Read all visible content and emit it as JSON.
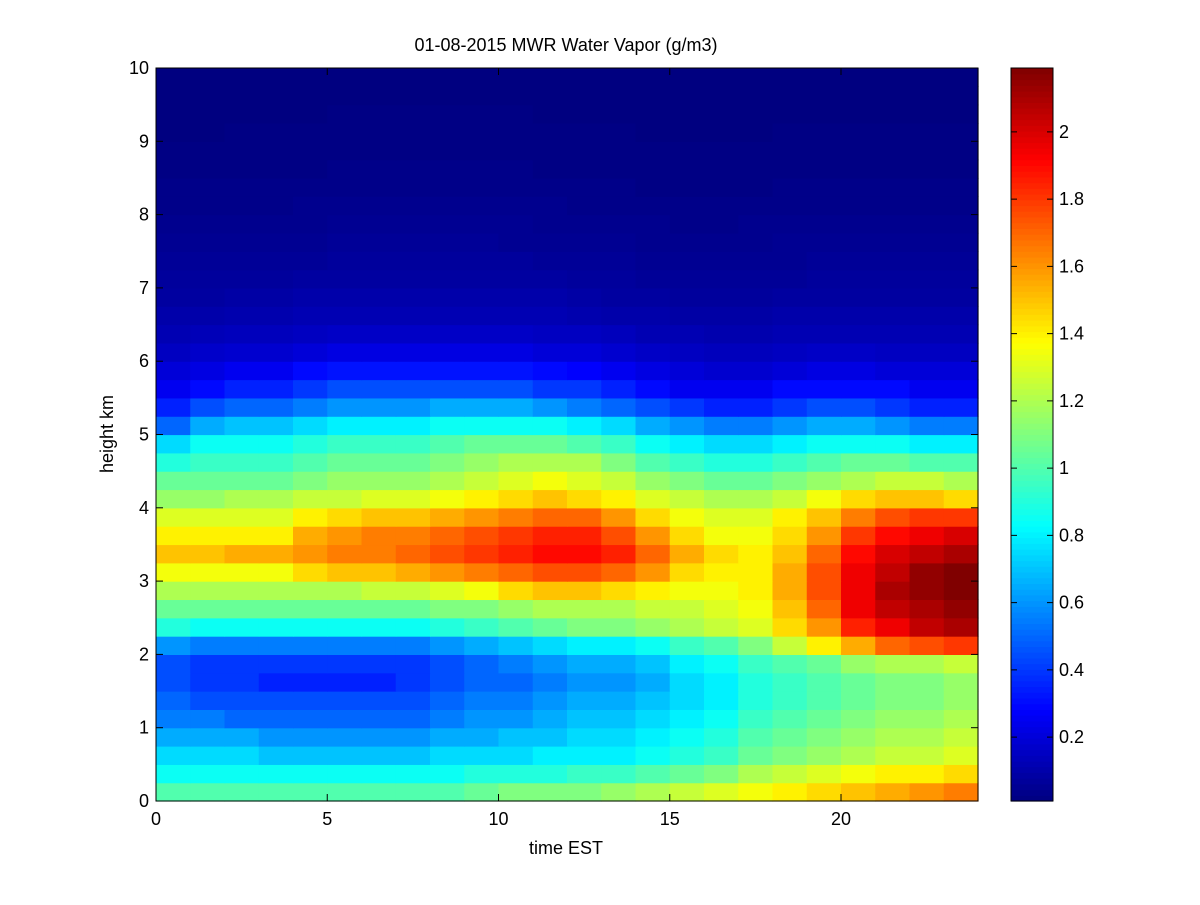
{
  "chart_data": {
    "type": "heatmap",
    "title": "01-08-2015 MWR Water Vapor (g/m3)",
    "xlabel": "time EST",
    "ylabel": "height km",
    "xlim": [
      0,
      24
    ],
    "ylim": [
      0,
      10
    ],
    "x_ticks": [
      0,
      5,
      10,
      15,
      20
    ],
    "y_ticks": [
      0,
      1,
      2,
      3,
      4,
      5,
      6,
      7,
      8,
      9,
      10
    ],
    "colormap": "jet",
    "colorbar": {
      "range": [
        0.01,
        2.19
      ],
      "ticks": [
        0.2,
        0.4,
        0.6,
        0.8,
        1,
        1.2,
        1.4,
        1.6,
        1.8,
        2
      ]
    },
    "grid": false,
    "times": [
      0.5,
      1.5,
      2.5,
      3.5,
      4.5,
      5.5,
      6.5,
      7.5,
      8.5,
      9.5,
      10.5,
      11.5,
      12.5,
      13.5,
      14.5,
      15.5,
      16.5,
      17.5,
      18.5,
      19.5,
      20.5,
      21.5,
      22.5,
      23.5
    ],
    "heights": [
      0.0,
      0.25,
      0.5,
      0.75,
      1.0,
      1.25,
      1.5,
      1.75,
      2.0,
      2.25,
      2.5,
      2.75,
      3.0,
      3.25,
      3.5,
      3.75,
      4.0,
      4.25,
      4.5,
      4.75,
      5.0,
      5.25,
      5.5,
      5.75,
      6.0,
      6.25,
      6.5,
      6.75,
      7.0,
      7.25,
      7.5,
      7.75,
      8.0,
      8.25,
      8.5,
      8.75,
      9.0,
      9.25,
      9.5,
      9.75
    ],
    "values": [
      [
        1.0,
        1.0,
        1.0,
        1.0,
        1.0,
        1.0,
        1.0,
        1.0,
        1.0,
        1.05,
        1.1,
        1.1,
        1.1,
        1.15,
        1.2,
        1.25,
        1.3,
        1.35,
        1.4,
        1.45,
        1.5,
        1.55,
        1.6,
        1.65
      ],
      [
        0.85,
        0.85,
        0.85,
        0.85,
        0.85,
        0.85,
        0.85,
        0.85,
        0.85,
        0.9,
        0.9,
        0.9,
        0.95,
        0.95,
        1.0,
        1.05,
        1.1,
        1.2,
        1.25,
        1.3,
        1.35,
        1.4,
        1.4,
        1.45
      ],
      [
        0.75,
        0.75,
        0.75,
        0.7,
        0.7,
        0.7,
        0.7,
        0.7,
        0.75,
        0.75,
        0.75,
        0.8,
        0.8,
        0.8,
        0.85,
        0.9,
        0.95,
        1.05,
        1.1,
        1.15,
        1.2,
        1.25,
        1.25,
        1.3
      ],
      [
        0.65,
        0.65,
        0.65,
        0.6,
        0.6,
        0.6,
        0.6,
        0.6,
        0.65,
        0.65,
        0.7,
        0.7,
        0.75,
        0.75,
        0.8,
        0.85,
        0.9,
        1.0,
        1.05,
        1.1,
        1.15,
        1.2,
        1.2,
        1.25
      ],
      [
        0.55,
        0.55,
        0.5,
        0.5,
        0.5,
        0.5,
        0.5,
        0.5,
        0.55,
        0.6,
        0.6,
        0.65,
        0.7,
        0.7,
        0.75,
        0.8,
        0.85,
        0.95,
        1.0,
        1.05,
        1.1,
        1.15,
        1.15,
        1.2
      ],
      [
        0.5,
        0.45,
        0.45,
        0.45,
        0.45,
        0.45,
        0.45,
        0.45,
        0.5,
        0.55,
        0.55,
        0.6,
        0.65,
        0.65,
        0.7,
        0.75,
        0.8,
        0.9,
        0.95,
        1.0,
        1.05,
        1.1,
        1.1,
        1.15
      ],
      [
        0.45,
        0.4,
        0.4,
        0.35,
        0.35,
        0.35,
        0.35,
        0.4,
        0.45,
        0.5,
        0.5,
        0.55,
        0.6,
        0.6,
        0.65,
        0.75,
        0.8,
        0.9,
        0.95,
        1.0,
        1.05,
        1.1,
        1.1,
        1.15
      ],
      [
        0.45,
        0.4,
        0.4,
        0.4,
        0.4,
        0.4,
        0.4,
        0.4,
        0.45,
        0.5,
        0.55,
        0.6,
        0.65,
        0.65,
        0.7,
        0.8,
        0.85,
        0.95,
        1.0,
        1.05,
        1.15,
        1.2,
        1.2,
        1.25
      ],
      [
        0.6,
        0.55,
        0.55,
        0.55,
        0.55,
        0.55,
        0.55,
        0.55,
        0.6,
        0.65,
        0.7,
        0.75,
        0.8,
        0.8,
        0.85,
        0.95,
        1.0,
        1.1,
        1.25,
        1.4,
        1.55,
        1.7,
        1.75,
        1.8
      ],
      [
        0.9,
        0.85,
        0.85,
        0.85,
        0.85,
        0.85,
        0.85,
        0.85,
        0.9,
        0.95,
        1.0,
        1.05,
        1.1,
        1.1,
        1.15,
        1.2,
        1.25,
        1.3,
        1.45,
        1.6,
        1.85,
        1.95,
        2.05,
        2.1
      ],
      [
        1.05,
        1.05,
        1.05,
        1.05,
        1.05,
        1.05,
        1.05,
        1.05,
        1.1,
        1.1,
        1.15,
        1.2,
        1.2,
        1.2,
        1.25,
        1.25,
        1.3,
        1.35,
        1.5,
        1.7,
        1.95,
        2.05,
        2.1,
        2.15
      ],
      [
        1.2,
        1.2,
        1.2,
        1.2,
        1.2,
        1.2,
        1.25,
        1.25,
        1.3,
        1.35,
        1.45,
        1.5,
        1.5,
        1.45,
        1.4,
        1.35,
        1.35,
        1.4,
        1.55,
        1.75,
        1.95,
        2.1,
        2.15,
        2.19
      ],
      [
        1.35,
        1.35,
        1.35,
        1.35,
        1.45,
        1.5,
        1.5,
        1.55,
        1.6,
        1.65,
        1.7,
        1.75,
        1.75,
        1.7,
        1.6,
        1.45,
        1.4,
        1.4,
        1.55,
        1.75,
        1.95,
        2.05,
        2.15,
        2.19
      ],
      [
        1.5,
        1.5,
        1.55,
        1.55,
        1.6,
        1.65,
        1.65,
        1.7,
        1.75,
        1.8,
        1.85,
        1.9,
        1.9,
        1.85,
        1.7,
        1.55,
        1.45,
        1.4,
        1.5,
        1.7,
        1.9,
        2.0,
        2.05,
        2.1
      ],
      [
        1.4,
        1.4,
        1.4,
        1.4,
        1.55,
        1.6,
        1.65,
        1.65,
        1.7,
        1.75,
        1.8,
        1.85,
        1.85,
        1.75,
        1.6,
        1.45,
        1.35,
        1.35,
        1.45,
        1.6,
        1.8,
        1.9,
        1.95,
        2.0
      ],
      [
        1.3,
        1.3,
        1.3,
        1.3,
        1.4,
        1.45,
        1.5,
        1.5,
        1.55,
        1.6,
        1.65,
        1.7,
        1.7,
        1.6,
        1.45,
        1.35,
        1.3,
        1.3,
        1.4,
        1.5,
        1.65,
        1.75,
        1.8,
        1.8
      ],
      [
        1.15,
        1.15,
        1.2,
        1.2,
        1.25,
        1.25,
        1.3,
        1.3,
        1.35,
        1.4,
        1.45,
        1.5,
        1.45,
        1.4,
        1.3,
        1.25,
        1.2,
        1.2,
        1.25,
        1.35,
        1.45,
        1.5,
        1.5,
        1.45
      ],
      [
        1.05,
        1.05,
        1.05,
        1.05,
        1.1,
        1.15,
        1.15,
        1.15,
        1.2,
        1.25,
        1.3,
        1.35,
        1.3,
        1.25,
        1.15,
        1.1,
        1.05,
        1.05,
        1.1,
        1.15,
        1.2,
        1.25,
        1.25,
        1.2
      ],
      [
        0.9,
        0.95,
        0.95,
        0.95,
        1.0,
        1.05,
        1.05,
        1.05,
        1.1,
        1.15,
        1.2,
        1.2,
        1.2,
        1.1,
        1.0,
        0.95,
        0.9,
        0.9,
        0.95,
        1.0,
        1.05,
        1.05,
        1.0,
        1.0
      ],
      [
        0.75,
        0.85,
        0.85,
        0.85,
        0.9,
        0.95,
        0.95,
        0.95,
        1.0,
        1.05,
        1.05,
        1.05,
        1.0,
        0.95,
        0.85,
        0.8,
        0.75,
        0.75,
        0.8,
        0.85,
        0.85,
        0.85,
        0.8,
        0.8
      ],
      [
        0.5,
        0.65,
        0.7,
        0.7,
        0.75,
        0.8,
        0.8,
        0.8,
        0.85,
        0.85,
        0.85,
        0.85,
        0.8,
        0.75,
        0.65,
        0.6,
        0.55,
        0.55,
        0.6,
        0.65,
        0.65,
        0.6,
        0.55,
        0.55
      ],
      [
        0.35,
        0.45,
        0.5,
        0.5,
        0.55,
        0.6,
        0.6,
        0.6,
        0.65,
        0.65,
        0.65,
        0.6,
        0.55,
        0.5,
        0.45,
        0.4,
        0.35,
        0.35,
        0.4,
        0.45,
        0.45,
        0.4,
        0.35,
        0.35
      ],
      [
        0.25,
        0.3,
        0.35,
        0.35,
        0.4,
        0.45,
        0.45,
        0.45,
        0.45,
        0.45,
        0.45,
        0.4,
        0.4,
        0.35,
        0.3,
        0.25,
        0.25,
        0.25,
        0.3,
        0.3,
        0.3,
        0.3,
        0.25,
        0.25
      ],
      [
        0.2,
        0.22,
        0.25,
        0.25,
        0.3,
        0.32,
        0.32,
        0.32,
        0.32,
        0.32,
        0.32,
        0.3,
        0.28,
        0.25,
        0.22,
        0.2,
        0.18,
        0.18,
        0.2,
        0.22,
        0.22,
        0.2,
        0.2,
        0.2
      ],
      [
        0.15,
        0.17,
        0.18,
        0.18,
        0.2,
        0.22,
        0.22,
        0.22,
        0.22,
        0.22,
        0.22,
        0.2,
        0.2,
        0.18,
        0.16,
        0.15,
        0.14,
        0.14,
        0.15,
        0.16,
        0.16,
        0.15,
        0.15,
        0.15
      ],
      [
        0.12,
        0.13,
        0.14,
        0.14,
        0.15,
        0.16,
        0.16,
        0.16,
        0.16,
        0.16,
        0.16,
        0.15,
        0.15,
        0.14,
        0.12,
        0.12,
        0.11,
        0.11,
        0.12,
        0.12,
        0.12,
        0.12,
        0.12,
        0.12
      ],
      [
        0.1,
        0.1,
        0.11,
        0.11,
        0.12,
        0.12,
        0.12,
        0.12,
        0.12,
        0.12,
        0.12,
        0.12,
        0.11,
        0.1,
        0.1,
        0.09,
        0.09,
        0.09,
        0.1,
        0.1,
        0.1,
        0.1,
        0.1,
        0.1
      ],
      [
        0.08,
        0.08,
        0.09,
        0.09,
        0.1,
        0.1,
        0.1,
        0.1,
        0.1,
        0.1,
        0.1,
        0.1,
        0.09,
        0.08,
        0.08,
        0.07,
        0.07,
        0.07,
        0.08,
        0.08,
        0.08,
        0.08,
        0.08,
        0.08
      ],
      [
        0.07,
        0.07,
        0.07,
        0.07,
        0.08,
        0.08,
        0.08,
        0.08,
        0.08,
        0.08,
        0.08,
        0.08,
        0.07,
        0.07,
        0.06,
        0.06,
        0.06,
        0.06,
        0.06,
        0.07,
        0.07,
        0.07,
        0.07,
        0.07
      ],
      [
        0.06,
        0.06,
        0.06,
        0.06,
        0.06,
        0.07,
        0.07,
        0.07,
        0.07,
        0.07,
        0.07,
        0.06,
        0.06,
        0.06,
        0.05,
        0.05,
        0.05,
        0.05,
        0.05,
        0.06,
        0.06,
        0.06,
        0.06,
        0.06
      ],
      [
        0.05,
        0.05,
        0.05,
        0.05,
        0.05,
        0.06,
        0.06,
        0.06,
        0.06,
        0.06,
        0.05,
        0.05,
        0.05,
        0.05,
        0.04,
        0.04,
        0.04,
        0.04,
        0.05,
        0.05,
        0.05,
        0.05,
        0.05,
        0.05
      ],
      [
        0.04,
        0.04,
        0.04,
        0.04,
        0.04,
        0.05,
        0.05,
        0.05,
        0.05,
        0.05,
        0.05,
        0.04,
        0.04,
        0.04,
        0.04,
        0.03,
        0.03,
        0.04,
        0.04,
        0.04,
        0.04,
        0.04,
        0.04,
        0.04
      ],
      [
        0.03,
        0.03,
        0.03,
        0.03,
        0.04,
        0.04,
        0.04,
        0.04,
        0.04,
        0.04,
        0.04,
        0.04,
        0.03,
        0.03,
        0.03,
        0.03,
        0.03,
        0.03,
        0.03,
        0.03,
        0.03,
        0.03,
        0.03,
        0.03
      ],
      [
        0.03,
        0.03,
        0.03,
        0.03,
        0.03,
        0.03,
        0.03,
        0.03,
        0.03,
        0.03,
        0.03,
        0.03,
        0.03,
        0.03,
        0.02,
        0.02,
        0.02,
        0.02,
        0.03,
        0.03,
        0.03,
        0.03,
        0.03,
        0.03
      ],
      [
        0.02,
        0.02,
        0.02,
        0.02,
        0.02,
        0.03,
        0.03,
        0.03,
        0.03,
        0.03,
        0.03,
        0.02,
        0.02,
        0.02,
        0.02,
        0.02,
        0.02,
        0.02,
        0.02,
        0.02,
        0.02,
        0.02,
        0.02,
        0.02
      ],
      [
        0.02,
        0.02,
        0.02,
        0.02,
        0.02,
        0.02,
        0.02,
        0.02,
        0.02,
        0.02,
        0.02,
        0.02,
        0.02,
        0.02,
        0.02,
        0.02,
        0.02,
        0.02,
        0.02,
        0.02,
        0.02,
        0.02,
        0.02,
        0.02
      ],
      [
        0.01,
        0.01,
        0.02,
        0.02,
        0.02,
        0.02,
        0.02,
        0.02,
        0.02,
        0.02,
        0.02,
        0.02,
        0.02,
        0.02,
        0.01,
        0.01,
        0.01,
        0.01,
        0.02,
        0.02,
        0.02,
        0.02,
        0.02,
        0.02
      ],
      [
        0.01,
        0.01,
        0.01,
        0.01,
        0.01,
        0.02,
        0.02,
        0.02,
        0.02,
        0.02,
        0.02,
        0.01,
        0.01,
        0.01,
        0.01,
        0.01,
        0.01,
        0.01,
        0.01,
        0.01,
        0.01,
        0.01,
        0.01,
        0.01
      ],
      [
        0.01,
        0.01,
        0.01,
        0.01,
        0.01,
        0.01,
        0.01,
        0.01,
        0.01,
        0.01,
        0.01,
        0.01,
        0.01,
        0.01,
        0.01,
        0.01,
        0.01,
        0.01,
        0.01,
        0.01,
        0.01,
        0.01,
        0.01,
        0.01
      ],
      [
        0.01,
        0.01,
        0.01,
        0.01,
        0.01,
        0.01,
        0.01,
        0.01,
        0.01,
        0.01,
        0.01,
        0.01,
        0.01,
        0.01,
        0.01,
        0.01,
        0.01,
        0.01,
        0.01,
        0.01,
        0.01,
        0.01,
        0.01,
        0.01
      ]
    ]
  }
}
